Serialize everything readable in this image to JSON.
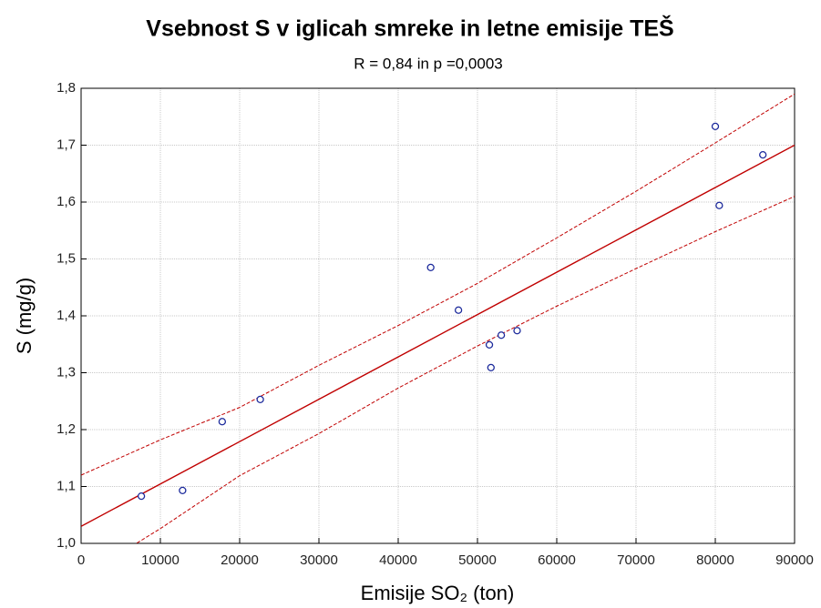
{
  "chart_data": {
    "type": "scatter",
    "title": "Vsebnost S v iglicah smreke in letne emisije TEŠ",
    "subtitle": "R = 0,84 in p =0,0003",
    "x_label": "Emisije SO₂ (ton)",
    "y_label": "S (mg/g)",
    "xlim": [
      0,
      90000
    ],
    "ylim": [
      1.0,
      1.8
    ],
    "xticks": [
      0,
      10000,
      20000,
      30000,
      40000,
      50000,
      60000,
      70000,
      80000,
      90000
    ],
    "yticks": [
      {
        "value": 1.0,
        "label": "1,0"
      },
      {
        "value": 1.1,
        "label": "1,1"
      },
      {
        "value": 1.2,
        "label": "1,2"
      },
      {
        "value": 1.3,
        "label": "1,3"
      },
      {
        "value": 1.4,
        "label": "1,4"
      },
      {
        "value": 1.5,
        "label": "1,5"
      },
      {
        "value": 1.6,
        "label": "1,6"
      },
      {
        "value": 1.7,
        "label": "1,7"
      },
      {
        "value": 1.8,
        "label": "1,8"
      }
    ],
    "grid": true,
    "series": [
      {
        "type": "line",
        "color": "#c00000",
        "dashed": false,
        "x": [
          0,
          90000
        ],
        "values": [
          1.03,
          1.7
        ]
      },
      {
        "type": "line",
        "color": "#c00000",
        "dashed": true,
        "x": [
          0,
          10000,
          20000,
          30000,
          40000,
          50000,
          60000,
          70000,
          80000,
          90000
        ],
        "values": [
          1.12,
          1.182,
          1.239,
          1.313,
          1.383,
          1.457,
          1.537,
          1.619,
          1.704,
          1.79
        ]
      },
      {
        "type": "line",
        "color": "#c00000",
        "dashed": true,
        "x": [
          0,
          10000,
          20000,
          30000,
          40000,
          50000,
          60000,
          70000,
          80000,
          90000
        ],
        "values": [
          0.94,
          1.026,
          1.119,
          1.193,
          1.273,
          1.347,
          1.417,
          1.483,
          1.548,
          1.61
        ]
      },
      {
        "type": "scatter",
        "color": "#1c2a9c",
        "x": [
          7600,
          12800,
          17800,
          22600,
          44100,
          47600,
          51500,
          51700,
          53000,
          55000,
          80000,
          80500,
          86000
        ],
        "values": [
          1.083,
          1.093,
          1.214,
          1.253,
          1.485,
          1.41,
          1.349,
          1.309,
          1.366,
          1.374,
          1.733,
          1.594,
          1.683
        ]
      }
    ]
  }
}
